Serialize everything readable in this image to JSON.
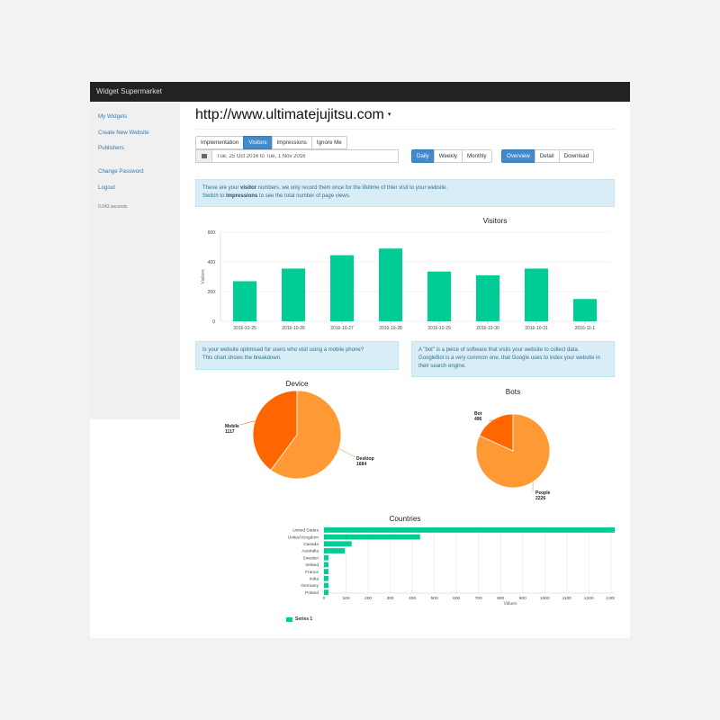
{
  "app": {
    "title": "Widget Supermarket"
  },
  "sidebar": {
    "links": [
      "My Widgets",
      "Create New Website",
      "Publishers",
      "Change Password",
      "Logout"
    ],
    "timing": "0.043 seconds"
  },
  "site": {
    "url": "http://www.ultimatejujitsu.com",
    "caret": "▾"
  },
  "tabs": [
    "Implementation",
    "Visitors",
    "Impressions",
    "Ignore Me"
  ],
  "active_tab": "Visitors",
  "date_range": {
    "value": "Tue, 25 Oct 2016 to Tue, 1 Nov 2016"
  },
  "period_buttons": [
    "Daily",
    "Weekly",
    "Monthly"
  ],
  "active_period": "Daily",
  "view_buttons": [
    "Overview",
    "Detail",
    "Download"
  ],
  "active_view": "Overview",
  "info": {
    "visitors_a": "These are your ",
    "visitors_b": "visitor",
    "visitors_c": " numbers, we only record them once for the lifetime of thier visit to your website.",
    "switch_a": "Switch to ",
    "switch_b": "impressions",
    "switch_c": " to see the total number of page views.",
    "mobile_1": "Is your website optimised for users who visit using a mobile phone?",
    "mobile_2": "This chart shows the breakdown.",
    "bot_1": "A \"bot\" is a peice of software that visits your website to collect data.",
    "bot_2": "GoogleBot is a very common one, that Google uses to index your website in",
    "bot_3": "their search engine."
  },
  "colors": {
    "green": "#00cc96",
    "orange": "#ff9933",
    "dark_orange": "#ff6600",
    "link": "#337ab7",
    "active": "#428bca"
  },
  "chart_data": [
    {
      "type": "bar",
      "title": "Visitors",
      "ylabel": "Visitors",
      "categories": [
        "2016-10-25",
        "2016-10-26",
        "2016-10-27",
        "2016-10-28",
        "2016-10-29",
        "2016-10-30",
        "2016-10-31",
        "2016-11-1"
      ],
      "values": [
        270,
        355,
        445,
        490,
        335,
        310,
        355,
        150
      ],
      "ylim": [
        0,
        600
      ],
      "yticks": [
        0,
        200,
        400,
        600
      ],
      "grid": true
    },
    {
      "type": "pie",
      "title": "Device",
      "labels": [
        "Desktop",
        "Mobile"
      ],
      "values": [
        1684,
        1117
      ],
      "colors": [
        "#ff9933",
        "#ff6600"
      ]
    },
    {
      "type": "pie",
      "title": "Bots",
      "labels": [
        "People",
        "Bot"
      ],
      "values": [
        2226,
        496
      ],
      "colors": [
        "#ff9933",
        "#ff6600"
      ]
    },
    {
      "type": "bar",
      "orientation": "horizontal",
      "title": "Countries",
      "xlabel": "Values",
      "categories": [
        "United States",
        "United Kingdom",
        "Canada",
        "Australia",
        "Sweden",
        "Ireland",
        "France",
        "India",
        "Germany",
        "Poland"
      ],
      "series": [
        {
          "name": "Series 1",
          "values": [
            1570,
            435,
            125,
            95,
            20,
            20,
            20,
            20,
            20,
            20
          ]
        }
      ],
      "xlim": [
        0,
        1700
      ],
      "xticks": [
        0,
        100,
        200,
        300,
        400,
        500,
        600,
        700,
        800,
        900,
        1000,
        1100,
        1200,
        1300,
        1400,
        1500,
        1600,
        1700
      ],
      "grid": true,
      "legend": "bottom"
    }
  ]
}
